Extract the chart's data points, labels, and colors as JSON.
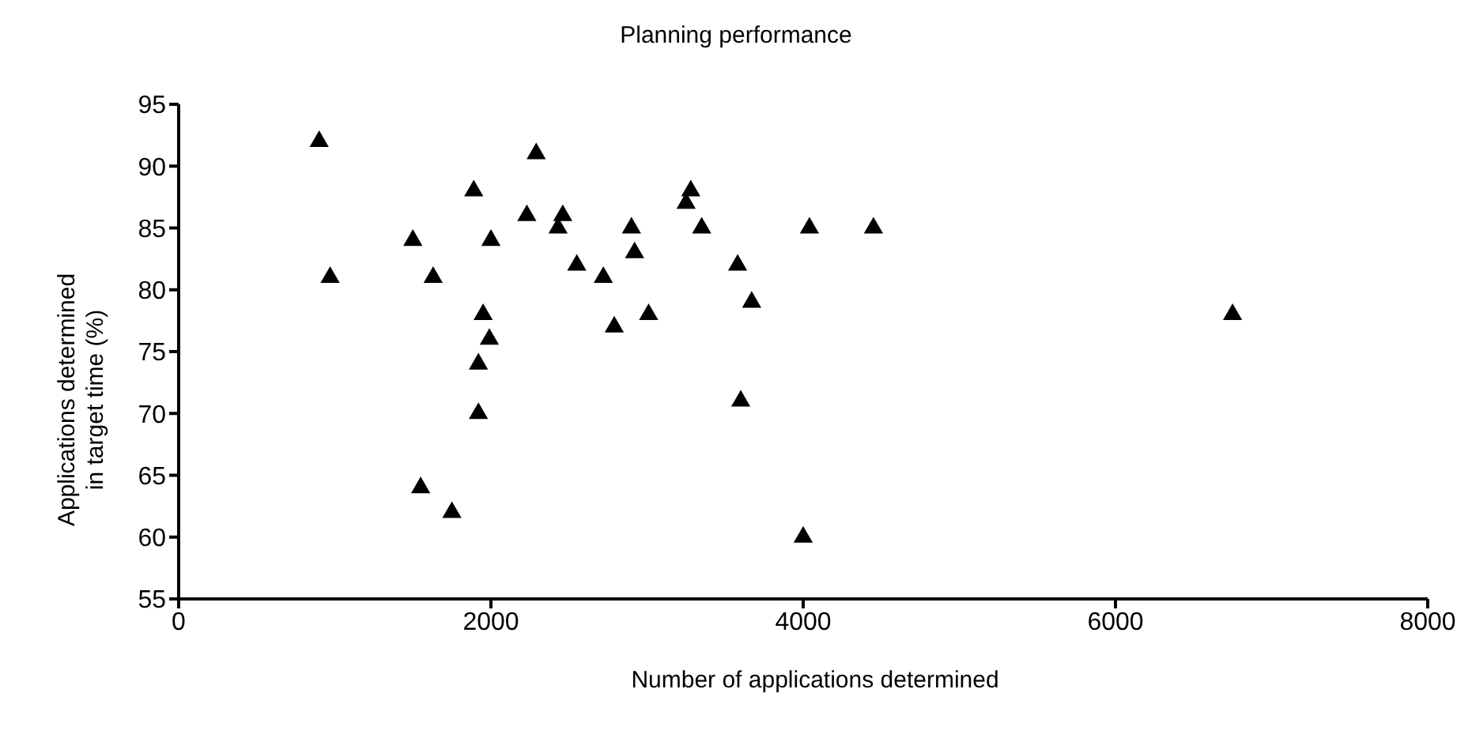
{
  "chart_data": {
    "type": "scatter",
    "title": "Planning performance",
    "xlabel": "Number of applications determined",
    "ylabel": "Applications determined in target time (%)",
    "x": [
      900,
      970,
      1500,
      1550,
      1630,
      1750,
      1890,
      1920,
      1920,
      1950,
      1990,
      2000,
      2230,
      2290,
      2430,
      2460,
      2550,
      2720,
      2790,
      2900,
      2920,
      3010,
      3250,
      3280,
      3350,
      3580,
      3600,
      3670,
      4000,
      4040,
      4450,
      6750
    ],
    "series": [
      {
        "color": "#000000",
        "values": [
          92,
          81,
          84,
          64,
          81,
          62,
          88,
          74,
          70,
          78,
          76,
          84,
          86,
          91,
          85,
          86,
          82,
          81,
          77,
          85,
          83,
          78,
          87,
          88,
          85,
          82,
          71,
          79,
          60,
          85,
          85,
          78
        ]
      }
    ],
    "xlim": [
      0,
      8000
    ],
    "xticks": [
      0,
      2000,
      4000,
      6000,
      8000
    ],
    "ylim": [
      55,
      95
    ],
    "yticks": [
      55,
      60,
      65,
      70,
      75,
      80,
      85,
      90,
      95
    ],
    "marker": "triangle",
    "grid": false,
    "legend": false
  }
}
